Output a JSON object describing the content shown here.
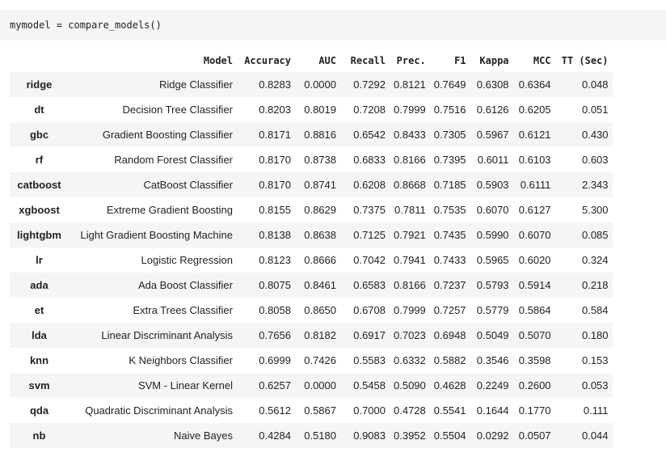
{
  "code": {
    "line": "mymodel = compare_models()"
  },
  "table": {
    "columns": [
      "",
      "Model",
      "Accuracy",
      "AUC",
      "Recall",
      "Prec.",
      "F1",
      "Kappa",
      "MCC",
      "TT (Sec)"
    ],
    "rows": [
      [
        "ridge",
        "Ridge Classifier",
        "0.8283",
        "0.0000",
        "0.7292",
        "0.8121",
        "0.7649",
        "0.6308",
        "0.6364",
        "0.048"
      ],
      [
        "dt",
        "Decision Tree Classifier",
        "0.8203",
        "0.8019",
        "0.7208",
        "0.7999",
        "0.7516",
        "0.6126",
        "0.6205",
        "0.051"
      ],
      [
        "gbc",
        "Gradient Boosting Classifier",
        "0.8171",
        "0.8816",
        "0.6542",
        "0.8433",
        "0.7305",
        "0.5967",
        "0.6121",
        "0.430"
      ],
      [
        "rf",
        "Random Forest Classifier",
        "0.8170",
        "0.8738",
        "0.6833",
        "0.8166",
        "0.7395",
        "0.6011",
        "0.6103",
        "0.603"
      ],
      [
        "catboost",
        "CatBoost Classifier",
        "0.8170",
        "0.8741",
        "0.6208",
        "0.8668",
        "0.7185",
        "0.5903",
        "0.6111",
        "2.343"
      ],
      [
        "xgboost",
        "Extreme Gradient Boosting",
        "0.8155",
        "0.8629",
        "0.7375",
        "0.7811",
        "0.7535",
        "0.6070",
        "0.6127",
        "5.300"
      ],
      [
        "lightgbm",
        "Light Gradient Boosting Machine",
        "0.8138",
        "0.8638",
        "0.7125",
        "0.7921",
        "0.7435",
        "0.5990",
        "0.6070",
        "0.085"
      ],
      [
        "lr",
        "Logistic Regression",
        "0.8123",
        "0.8666",
        "0.7042",
        "0.7941",
        "0.7433",
        "0.5965",
        "0.6020",
        "0.324"
      ],
      [
        "ada",
        "Ada Boost Classifier",
        "0.8075",
        "0.8461",
        "0.6583",
        "0.8166",
        "0.7237",
        "0.5793",
        "0.5914",
        "0.218"
      ],
      [
        "et",
        "Extra Trees Classifier",
        "0.8058",
        "0.8650",
        "0.6708",
        "0.7999",
        "0.7257",
        "0.5779",
        "0.5864",
        "0.584"
      ],
      [
        "lda",
        "Linear Discriminant Analysis",
        "0.7656",
        "0.8182",
        "0.6917",
        "0.7023",
        "0.6948",
        "0.5049",
        "0.5070",
        "0.180"
      ],
      [
        "knn",
        "K Neighbors Classifier",
        "0.6999",
        "0.7426",
        "0.5583",
        "0.6332",
        "0.5882",
        "0.3546",
        "0.3598",
        "0.153"
      ],
      [
        "svm",
        "SVM - Linear Kernel",
        "0.6257",
        "0.0000",
        "0.5458",
        "0.5090",
        "0.4628",
        "0.2249",
        "0.2600",
        "0.053"
      ],
      [
        "qda",
        "Quadratic Discriminant Analysis",
        "0.5612",
        "0.5867",
        "0.7000",
        "0.4728",
        "0.5541",
        "0.1644",
        "0.1770",
        "0.111"
      ],
      [
        "nb",
        "Naive Bayes",
        "0.4284",
        "0.5180",
        "0.9083",
        "0.3952",
        "0.5504",
        "0.0292",
        "0.0507",
        "0.044"
      ]
    ]
  }
}
